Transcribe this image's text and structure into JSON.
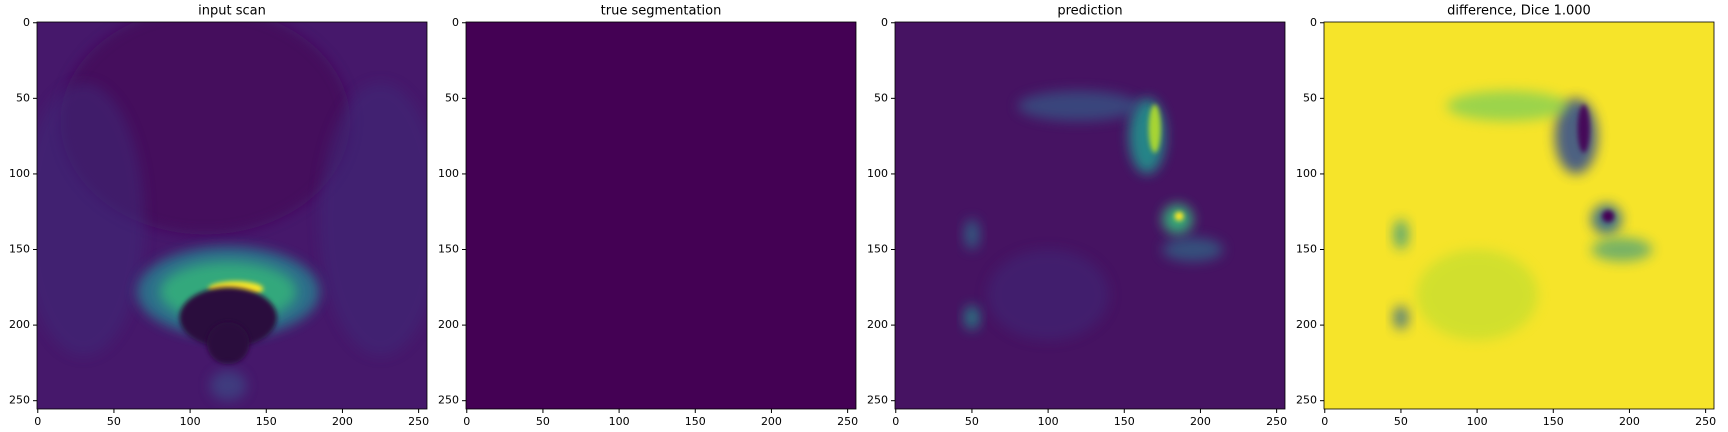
{
  "chart_data": [
    {
      "type": "image",
      "title": "input scan",
      "color": "#46186b",
      "xlim": [
        -0.5,
        255.5
      ],
      "ylim": [
        255.5,
        -0.5
      ],
      "xticks": [
        0,
        50,
        100,
        150,
        200,
        250
      ],
      "yticks": [
        0,
        50,
        100,
        150,
        200,
        250
      ]
    },
    {
      "type": "image",
      "title": "true segmentation",
      "color": "#440154",
      "xlim": [
        -0.5,
        255.5
      ],
      "ylim": [
        255.5,
        -0.5
      ],
      "xticks": [
        0,
        50,
        100,
        150,
        200,
        250
      ],
      "yticks": [
        0,
        50,
        100,
        150,
        200,
        250
      ]
    },
    {
      "type": "image",
      "title": "prediction",
      "color": "#461362",
      "xlim": [
        -0.5,
        255.5
      ],
      "ylim": [
        255.5,
        -0.5
      ],
      "xticks": [
        0,
        50,
        100,
        150,
        200,
        250
      ],
      "yticks": [
        0,
        50,
        100,
        150,
        200,
        250
      ]
    },
    {
      "type": "image",
      "title": "difference, Dice 1.000",
      "color": "#f6e42a",
      "xlim": [
        -0.5,
        255.5
      ],
      "ylim": [
        255.5,
        -0.5
      ],
      "xticks": [
        0,
        50,
        100,
        150,
        200,
        250
      ],
      "yticks": [
        0,
        50,
        100,
        150,
        200,
        250
      ]
    }
  ]
}
